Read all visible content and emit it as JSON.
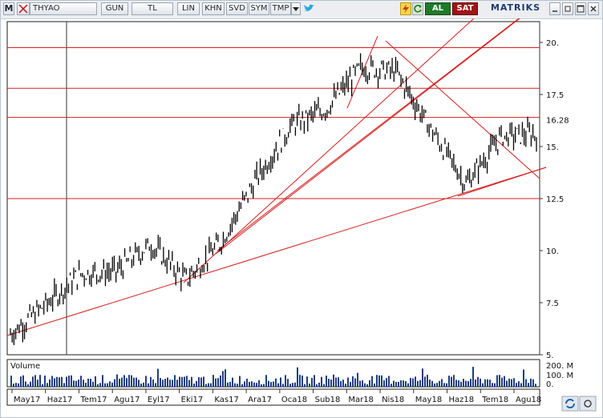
{
  "toolbar": {
    "m_label": "M",
    "symbol": "THYAO",
    "buttons": [
      "GUN",
      "TL",
      "LIN",
      "KHN",
      "SVD",
      "SYM",
      "TMP"
    ],
    "dropdown_icon": "chevron-down-icon",
    "bird_icon": "twitter-bird-icon",
    "al_label": "AL",
    "sat_label": "SAT",
    "brand": "MATRIKS",
    "colors": {
      "al": "#1f7a2b",
      "sat": "#a01414",
      "twitter": "#2aa6e0",
      "brand": "#1d3b72"
    }
  },
  "chart_data": {
    "type": "line",
    "symbol": "THYAO",
    "price_ticks": [
      "20.",
      "17.5",
      "15.",
      "12.5",
      "10.",
      "7.5",
      "5."
    ],
    "last_price": "16.28",
    "volume_label": "Volume",
    "volume_ticks": [
      "200. M",
      "100. M",
      "0."
    ],
    "x_ticks": [
      "May17",
      "Haz17",
      "Tem17",
      "Agu17",
      "Eyl17",
      "Eki17",
      "Kas17",
      "Ara17",
      "Oca18",
      "Sub18",
      "Mar18",
      "Nis18",
      "May18",
      "Haz18",
      "Tem18",
      "Agu18"
    ],
    "horizontal_lines": [
      19.75,
      17.8,
      16.4,
      12.5
    ],
    "price_series": [
      [
        "May17",
        6.0
      ],
      [
        "Haz17",
        7.4
      ],
      [
        "Tem17",
        8.9
      ],
      [
        "Agu17",
        9.0
      ],
      [
        "Eyl17",
        10.3
      ],
      [
        "Eki17",
        8.6
      ],
      [
        "Kas17",
        10.4
      ],
      [
        "Ara17",
        13.4
      ],
      [
        "Oca18",
        16.0
      ],
      [
        "Sub18",
        16.8
      ],
      [
        "Mar18",
        18.8
      ],
      [
        "Nis18",
        18.6
      ],
      [
        "May18",
        15.8
      ],
      [
        "Haz18",
        13.2
      ],
      [
        "Tem18",
        15.5
      ],
      [
        "Agu18",
        15.6
      ]
    ],
    "ylim": [
      5,
      21
    ],
    "grid": false,
    "line_color": "#000000",
    "trendline_color": "#d42020"
  }
}
